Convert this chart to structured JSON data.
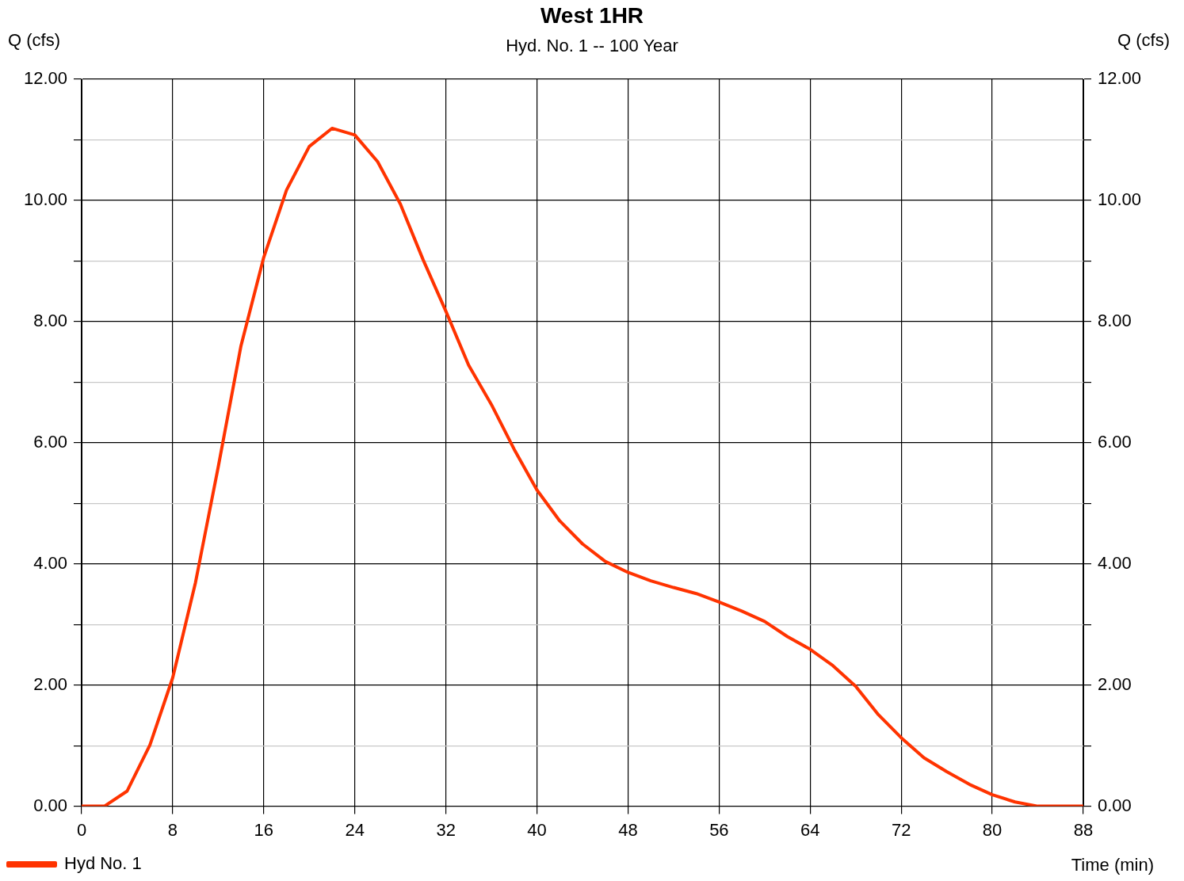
{
  "chart_data": {
    "type": "line",
    "title": "West 1HR",
    "subtitle": "Hyd. No. 1 -- 100 Year",
    "xlabel": "Time (min)",
    "ylabel": "Q (cfs)",
    "y2label": "Q (cfs)",
    "x": [
      0,
      2,
      4,
      6,
      8,
      10,
      12,
      14,
      16,
      18,
      20,
      22,
      24,
      26,
      28,
      30,
      32,
      34,
      36,
      38,
      40,
      42,
      44,
      46,
      48,
      50,
      52,
      54,
      56,
      58,
      60,
      62,
      64,
      66,
      68,
      70,
      72,
      74,
      76,
      78,
      80,
      82,
      84,
      86,
      88
    ],
    "series": [
      {
        "name": "Hyd No. 1",
        "color": "#ff3300",
        "values": [
          0,
          0,
          0.25,
          1.01,
          2.12,
          3.69,
          5.6,
          7.6,
          9.06,
          10.17,
          10.89,
          11.19,
          11.08,
          10.64,
          9.94,
          9.02,
          8.17,
          7.28,
          6.63,
          5.89,
          5.22,
          4.71,
          4.33,
          4.04,
          3.86,
          3.72,
          3.61,
          3.51,
          3.37,
          3.22,
          3.05,
          2.8,
          2.59,
          2.32,
          1.98,
          1.51,
          1.13,
          0.8,
          0.57,
          0.36,
          0.19,
          0.07,
          0,
          0,
          0
        ]
      }
    ],
    "xlim": [
      0,
      88
    ],
    "xticks": [
      0,
      8,
      16,
      24,
      32,
      40,
      48,
      56,
      64,
      72,
      80,
      88
    ],
    "ylim": [
      0,
      12
    ],
    "yticks": [
      {
        "value": 0,
        "label": "0.00"
      },
      {
        "value": 1,
        "label": null
      },
      {
        "value": 2,
        "label": "2.00"
      },
      {
        "value": 3,
        "label": null
      },
      {
        "value": 4,
        "label": "4.00"
      },
      {
        "value": 5,
        "label": null
      },
      {
        "value": 6,
        "label": "6.00"
      },
      {
        "value": 7,
        "label": null
      },
      {
        "value": 8,
        "label": "8.00"
      },
      {
        "value": 9,
        "label": null
      },
      {
        "value": 10,
        "label": "10.00"
      },
      {
        "value": 11,
        "label": null
      },
      {
        "value": 12,
        "label": "12.00"
      }
    ],
    "y2lim": [
      0,
      12
    ],
    "y2ticks": [
      {
        "value": 0,
        "label": "0.00"
      },
      {
        "value": 1,
        "label": null
      },
      {
        "value": 2,
        "label": "2.00"
      },
      {
        "value": 3,
        "label": null
      },
      {
        "value": 4,
        "label": "4.00"
      },
      {
        "value": 5,
        "label": null
      },
      {
        "value": 6,
        "label": "6.00"
      },
      {
        "value": 7,
        "label": null
      },
      {
        "value": 8,
        "label": "8.00"
      },
      {
        "value": 9,
        "label": null
      },
      {
        "value": 10,
        "label": "10.00"
      },
      {
        "value": 11,
        "label": null
      },
      {
        "value": 12,
        "label": "12.00"
      }
    ],
    "grid": true,
    "legend": "bottom left",
    "marker": "none",
    "line_style": "solid"
  }
}
